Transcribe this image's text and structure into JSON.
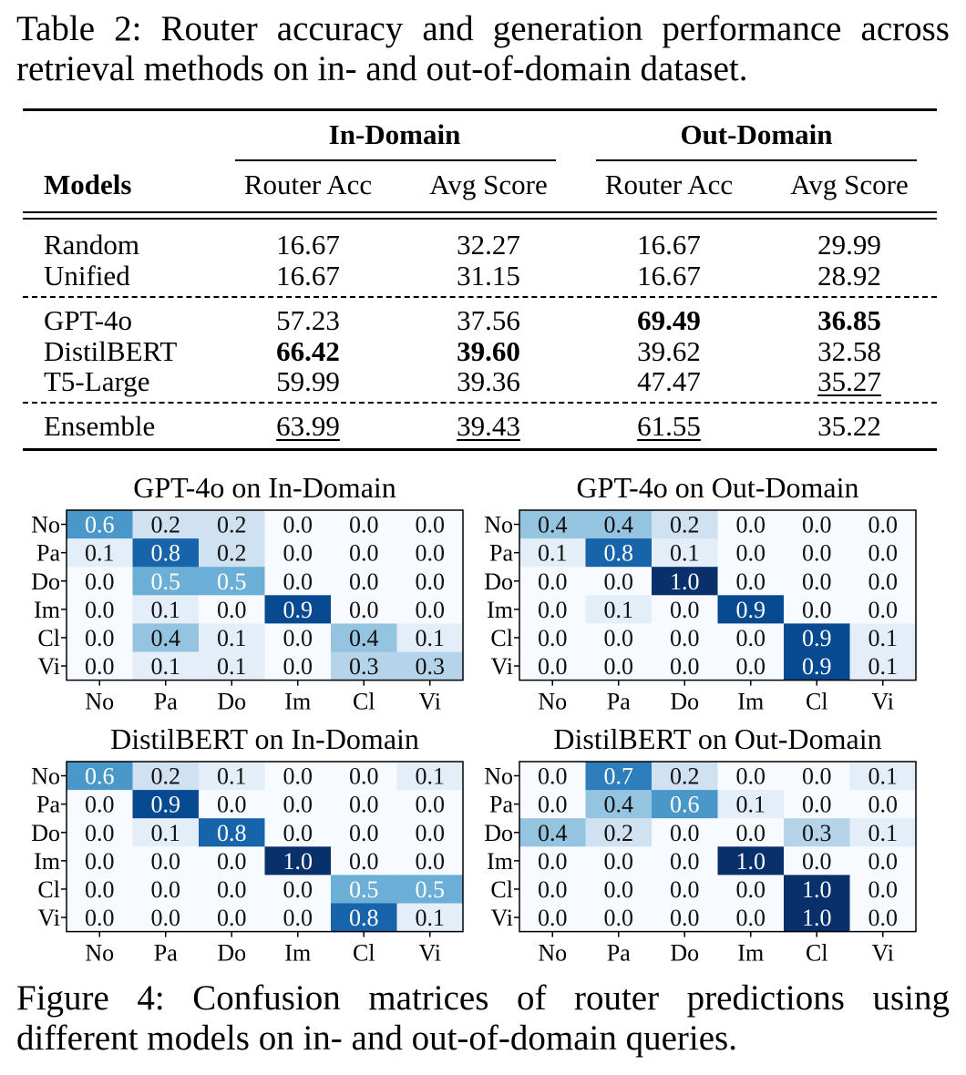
{
  "table": {
    "caption": "Table 2: Router accuracy and generation performance across retrieval methods on in- and out-of-domain dataset.",
    "caption_line1": "Table 2: Router accuracy and generation performance across",
    "caption_line2": "retrieval methods on in- and out-of-domain dataset.",
    "group_headers": [
      "In-Domain",
      "Out-Domain"
    ],
    "models_header": "Models",
    "column_headers": [
      "Router Acc",
      "Avg Score",
      "Router Acc",
      "Avg Score"
    ],
    "rows": [
      {
        "model": "Random",
        "values": [
          "16.67",
          "32.27",
          "16.67",
          "29.99"
        ],
        "bold": [
          false,
          false,
          false,
          false
        ],
        "underline": [
          false,
          false,
          false,
          false
        ]
      },
      {
        "model": "Unified",
        "values": [
          "16.67",
          "31.15",
          "16.67",
          "28.92"
        ],
        "bold": [
          false,
          false,
          false,
          false
        ],
        "underline": [
          false,
          false,
          false,
          false
        ]
      },
      {
        "model": "GPT-4o",
        "values": [
          "57.23",
          "37.56",
          "69.49",
          "36.85"
        ],
        "bold": [
          false,
          false,
          true,
          true
        ],
        "underline": [
          false,
          false,
          false,
          false
        ]
      },
      {
        "model": "DistilBERT",
        "values": [
          "66.42",
          "39.60",
          "39.62",
          "32.58"
        ],
        "bold": [
          true,
          true,
          false,
          false
        ],
        "underline": [
          false,
          false,
          false,
          false
        ]
      },
      {
        "model": "T5-Large",
        "values": [
          "59.99",
          "39.36",
          "47.47",
          "35.27"
        ],
        "bold": [
          false,
          false,
          false,
          false
        ],
        "underline": [
          false,
          false,
          false,
          true
        ]
      },
      {
        "model": "Ensemble",
        "values": [
          "63.99",
          "39.43",
          "61.55",
          "35.22"
        ],
        "bold": [
          false,
          false,
          false,
          false
        ],
        "underline": [
          true,
          true,
          true,
          false
        ]
      }
    ]
  },
  "chart_data": [
    {
      "type": "heatmap",
      "title": "GPT-4o on In-Domain",
      "row_labels": [
        "No",
        "Pa",
        "Do",
        "Im",
        "Cl",
        "Vi"
      ],
      "col_labels": [
        "No",
        "Pa",
        "Do",
        "Im",
        "Cl",
        "Vi"
      ],
      "values": [
        [
          0.6,
          0.2,
          0.2,
          0.0,
          0.0,
          0.0
        ],
        [
          0.1,
          0.8,
          0.2,
          0.0,
          0.0,
          0.0
        ],
        [
          0.0,
          0.5,
          0.5,
          0.0,
          0.0,
          0.0
        ],
        [
          0.0,
          0.1,
          0.0,
          0.9,
          0.0,
          0.0
        ],
        [
          0.0,
          0.4,
          0.1,
          0.0,
          0.4,
          0.1
        ],
        [
          0.0,
          0.1,
          0.1,
          0.0,
          0.3,
          0.3
        ]
      ]
    },
    {
      "type": "heatmap",
      "title": "GPT-4o on Out-Domain",
      "row_labels": [
        "No",
        "Pa",
        "Do",
        "Im",
        "Cl",
        "Vi"
      ],
      "col_labels": [
        "No",
        "Pa",
        "Do",
        "Im",
        "Cl",
        "Vi"
      ],
      "values": [
        [
          0.4,
          0.4,
          0.2,
          0.0,
          0.0,
          0.0
        ],
        [
          0.1,
          0.8,
          0.1,
          0.0,
          0.0,
          0.0
        ],
        [
          0.0,
          0.0,
          1.0,
          0.0,
          0.0,
          0.0
        ],
        [
          0.0,
          0.1,
          0.0,
          0.9,
          0.0,
          0.0
        ],
        [
          0.0,
          0.0,
          0.0,
          0.0,
          0.9,
          0.1
        ],
        [
          0.0,
          0.0,
          0.0,
          0.0,
          0.9,
          0.1
        ]
      ]
    },
    {
      "type": "heatmap",
      "title": "DistilBERT on In-Domain",
      "row_labels": [
        "No",
        "Pa",
        "Do",
        "Im",
        "Cl",
        "Vi"
      ],
      "col_labels": [
        "No",
        "Pa",
        "Do",
        "Im",
        "Cl",
        "Vi"
      ],
      "values": [
        [
          0.6,
          0.2,
          0.1,
          0.0,
          0.0,
          0.1
        ],
        [
          0.0,
          0.9,
          0.0,
          0.0,
          0.0,
          0.0
        ],
        [
          0.0,
          0.1,
          0.8,
          0.0,
          0.0,
          0.0
        ],
        [
          0.0,
          0.0,
          0.0,
          1.0,
          0.0,
          0.0
        ],
        [
          0.0,
          0.0,
          0.0,
          0.0,
          0.5,
          0.5
        ],
        [
          0.0,
          0.0,
          0.0,
          0.0,
          0.8,
          0.1
        ]
      ]
    },
    {
      "type": "heatmap",
      "title": "DistilBERT on Out-Domain",
      "row_labels": [
        "No",
        "Pa",
        "Do",
        "Im",
        "Cl",
        "Vi"
      ],
      "col_labels": [
        "No",
        "Pa",
        "Do",
        "Im",
        "Cl",
        "Vi"
      ],
      "values": [
        [
          0.0,
          0.7,
          0.2,
          0.0,
          0.0,
          0.1
        ],
        [
          0.0,
          0.4,
          0.6,
          0.1,
          0.0,
          0.0
        ],
        [
          0.4,
          0.2,
          0.0,
          0.0,
          0.3,
          0.1
        ],
        [
          0.0,
          0.0,
          0.0,
          1.0,
          0.0,
          0.0
        ],
        [
          0.0,
          0.0,
          0.0,
          0.0,
          1.0,
          0.0
        ],
        [
          0.0,
          0.0,
          0.0,
          0.0,
          1.0,
          0.0
        ]
      ]
    }
  ],
  "figure": {
    "caption": "Figure 4: Confusion matrices of router predictions using different models on in- and out-of-domain queries.",
    "caption_line1": "Figure 4: Confusion matrices of router predictions using",
    "caption_line2": "different models on in- and out-of-domain queries."
  },
  "colors": {
    "heat_low": "#f7fbff",
    "heat_high": "#08306b",
    "text_dark": "#000000",
    "text_light": "#ffffff"
  }
}
